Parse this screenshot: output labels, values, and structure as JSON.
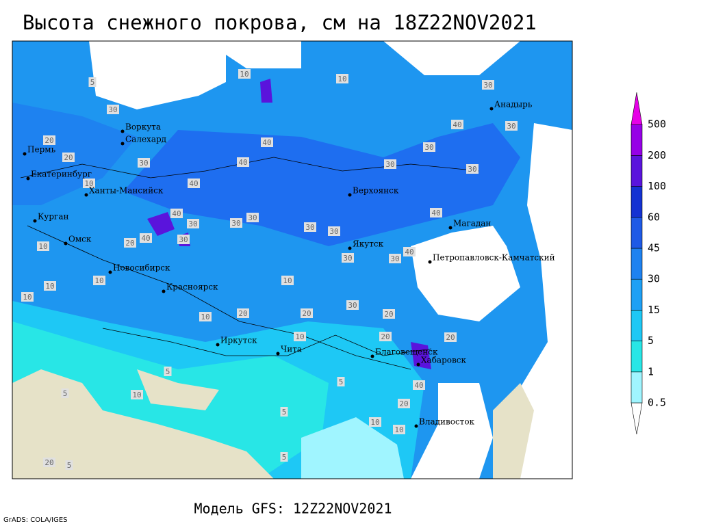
{
  "title": "Высота снежного покрова, см на 18Z22NOV2021",
  "cities": [
    "Воркута",
    "Салехард",
    "Пермь",
    "Екатеринбург",
    "Ханты-Мансийск",
    "Курган",
    "Омск",
    "Новосибирск",
    "Красноярск",
    "Иркутск",
    "Чита",
    "Верхоянск",
    "Якутск",
    "Магадан",
    "Анадырь",
    "Петропавловск-Камчатский",
    "Благовещенск",
    "Хабаровск",
    "Владивосток"
  ],
  "contour_labels": [
    5,
    30,
    20,
    20,
    10,
    30,
    40,
    40,
    30,
    40,
    40,
    30,
    30,
    30,
    30,
    30,
    30,
    40,
    40,
    30,
    40,
    30,
    30,
    30,
    30,
    10,
    10,
    20,
    40,
    30,
    10,
    10,
    10,
    10,
    20,
    10,
    10,
    20,
    30,
    10,
    20,
    20,
    40,
    10,
    20,
    10,
    5,
    5,
    10,
    5,
    20,
    5,
    5,
    5,
    20
  ],
  "colorbar": {
    "levels": [
      0.5,
      1,
      5,
      15,
      30,
      45,
      60,
      100,
      200,
      500
    ],
    "colors": [
      "#ffffff",
      "#a0f5ff",
      "#28e6e6",
      "#1ec8f5",
      "#1ea0f5",
      "#1e82f0",
      "#1e5ae6",
      "#1432d2",
      "#5a14dc",
      "#9600e6",
      "#e600e6"
    ]
  },
  "footer": {
    "model": "Модель GFS: 12Z22NOV2021",
    "credit": "GrADS: COLA/IGES"
  }
}
